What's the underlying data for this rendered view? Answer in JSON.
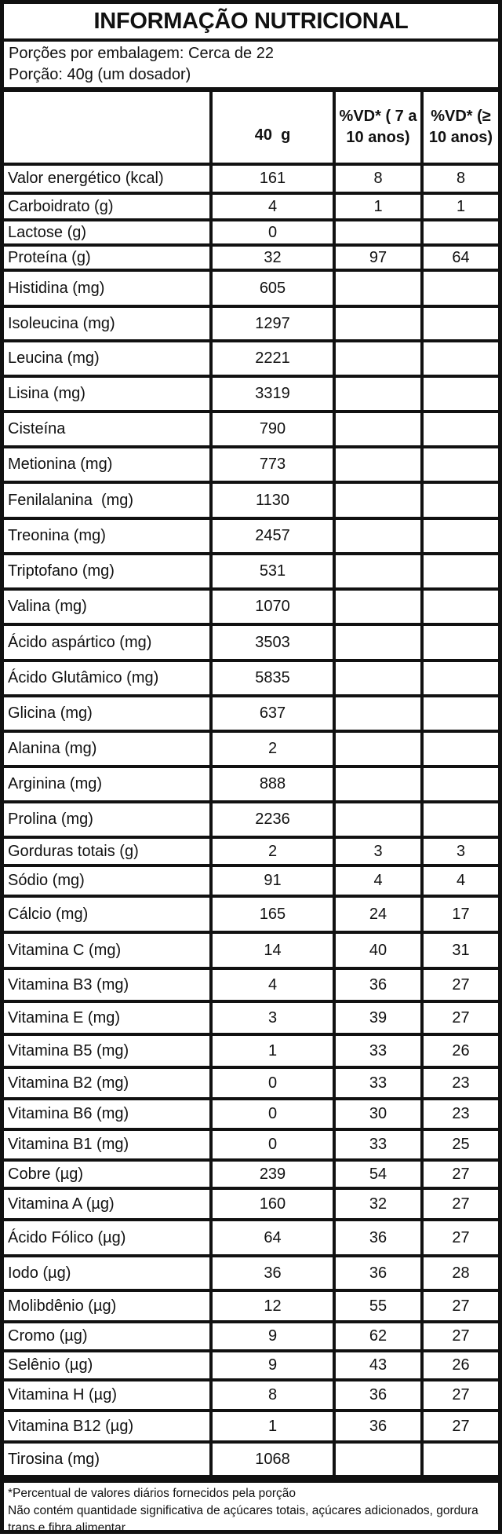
{
  "title": "INFORMAÇÃO NUTRICIONAL",
  "serving": {
    "servings_per_package": "Porções por embalagem: Cerca de 22",
    "serving_size": "Porção: 40g (um dosador)"
  },
  "header": {
    "nutrient": "",
    "amount": "40  g",
    "vd_children": "%VD* ( 7 a 10 anos)",
    "vd_adults": "%VD* (≥ 10 anos)"
  },
  "rows": [
    {
      "name": "Valor energético (kcal)",
      "amount": "161",
      "vd1": "8",
      "vd2": "8"
    },
    {
      "name": "Carboidrato (g)",
      "amount": "4",
      "vd1": "1",
      "vd2": "1"
    },
    {
      "name": "Lactose (g)",
      "amount": "0",
      "vd1": "",
      "vd2": ""
    },
    {
      "name": "Proteína (g)",
      "amount": "32",
      "vd1": "97",
      "vd2": "64"
    },
    {
      "name": "Histidina (mg)",
      "amount": "605",
      "vd1": "",
      "vd2": ""
    },
    {
      "name": "Isoleucina (mg)",
      "amount": "1297",
      "vd1": "",
      "vd2": ""
    },
    {
      "name": "Leucina (mg)",
      "amount": "2221",
      "vd1": "",
      "vd2": ""
    },
    {
      "name": "Lisina (mg)",
      "amount": "3319",
      "vd1": "",
      "vd2": ""
    },
    {
      "name": "Cisteína",
      "amount": "790",
      "vd1": "",
      "vd2": ""
    },
    {
      "name": "Metionina (mg)",
      "amount": "773",
      "vd1": "",
      "vd2": ""
    },
    {
      "name": "Fenilalanina  (mg)",
      "amount": "1130",
      "vd1": "",
      "vd2": ""
    },
    {
      "name": "Treonina (mg)",
      "amount": "2457",
      "vd1": "",
      "vd2": ""
    },
    {
      "name": "Triptofano (mg)",
      "amount": "531",
      "vd1": "",
      "vd2": ""
    },
    {
      "name": "Valina (mg)",
      "amount": "1070",
      "vd1": "",
      "vd2": ""
    },
    {
      "name": "Ácido aspártico (mg)",
      "amount": "3503",
      "vd1": "",
      "vd2": ""
    },
    {
      "name": "Ácido Glutâmico (mg)",
      "amount": "5835",
      "vd1": "",
      "vd2": ""
    },
    {
      "name": "Glicina (mg)",
      "amount": "637",
      "vd1": "",
      "vd2": ""
    },
    {
      "name": "Alanina (mg)",
      "amount": "2",
      "vd1": "",
      "vd2": ""
    },
    {
      "name": "Arginina (mg)",
      "amount": "888",
      "vd1": "",
      "vd2": ""
    },
    {
      "name": "Prolina (mg)",
      "amount": "2236",
      "vd1": "",
      "vd2": ""
    },
    {
      "name": "Gorduras totais (g)",
      "amount": "2",
      "vd1": "3",
      "vd2": "3"
    },
    {
      "name": "Sódio (mg)",
      "amount": "91",
      "vd1": "4",
      "vd2": "4"
    },
    {
      "name": "Cálcio (mg)",
      "amount": "165",
      "vd1": "24",
      "vd2": "17"
    },
    {
      "name": "Vitamina C (mg)",
      "amount": "14",
      "vd1": "40",
      "vd2": "31"
    },
    {
      "name": "Vitamina B3 (mg)",
      "amount": "4",
      "vd1": "36",
      "vd2": "27"
    },
    {
      "name": "Vitamina E (mg)",
      "amount": "3",
      "vd1": "39",
      "vd2": "27"
    },
    {
      "name": "Vitamina B5 (mg)",
      "amount": "1",
      "vd1": "33",
      "vd2": "26"
    },
    {
      "name": "Vitamina B2 (mg)",
      "amount": "0",
      "vd1": "33",
      "vd2": "23"
    },
    {
      "name": "Vitamina B6 (mg)",
      "amount": "0",
      "vd1": "30",
      "vd2": "23"
    },
    {
      "name": "Vitamina B1 (mg)",
      "amount": "0",
      "vd1": "33",
      "vd2": "25"
    },
    {
      "name": "Cobre (µg)",
      "amount": "239",
      "vd1": "54",
      "vd2": "27"
    },
    {
      "name": "Vitamina A (µg)",
      "amount": "160",
      "vd1": "32",
      "vd2": "27"
    },
    {
      "name": "Ácido Fólico (µg)",
      "amount": "64",
      "vd1": "36",
      "vd2": "27"
    },
    {
      "name": "Iodo (µg)",
      "amount": "36",
      "vd1": "36",
      "vd2": "28"
    },
    {
      "name": "Molibdênio (µg)",
      "amount": "12",
      "vd1": "55",
      "vd2": "27"
    },
    {
      "name": "Cromo (µg)",
      "amount": "9",
      "vd1": "62",
      "vd2": "27"
    },
    {
      "name": "Selênio (µg)",
      "amount": "9",
      "vd1": "43",
      "vd2": "26"
    },
    {
      "name": "Vitamina H (µg)",
      "amount": "8",
      "vd1": "36",
      "vd2": "27"
    },
    {
      "name": "Vitamina B12 (µg)",
      "amount": "1",
      "vd1": "36",
      "vd2": "27"
    },
    {
      "name": "Tirosina (mg)",
      "amount": "1068",
      "vd1": "",
      "vd2": ""
    }
  ],
  "footnote": {
    "line1": "*Percentual de valores diários fornecidos pela porção",
    "line2": "Não contém quantidade significativa de açúcares totais, açúcares adicionados, gordura trans e fibra alimentar."
  }
}
